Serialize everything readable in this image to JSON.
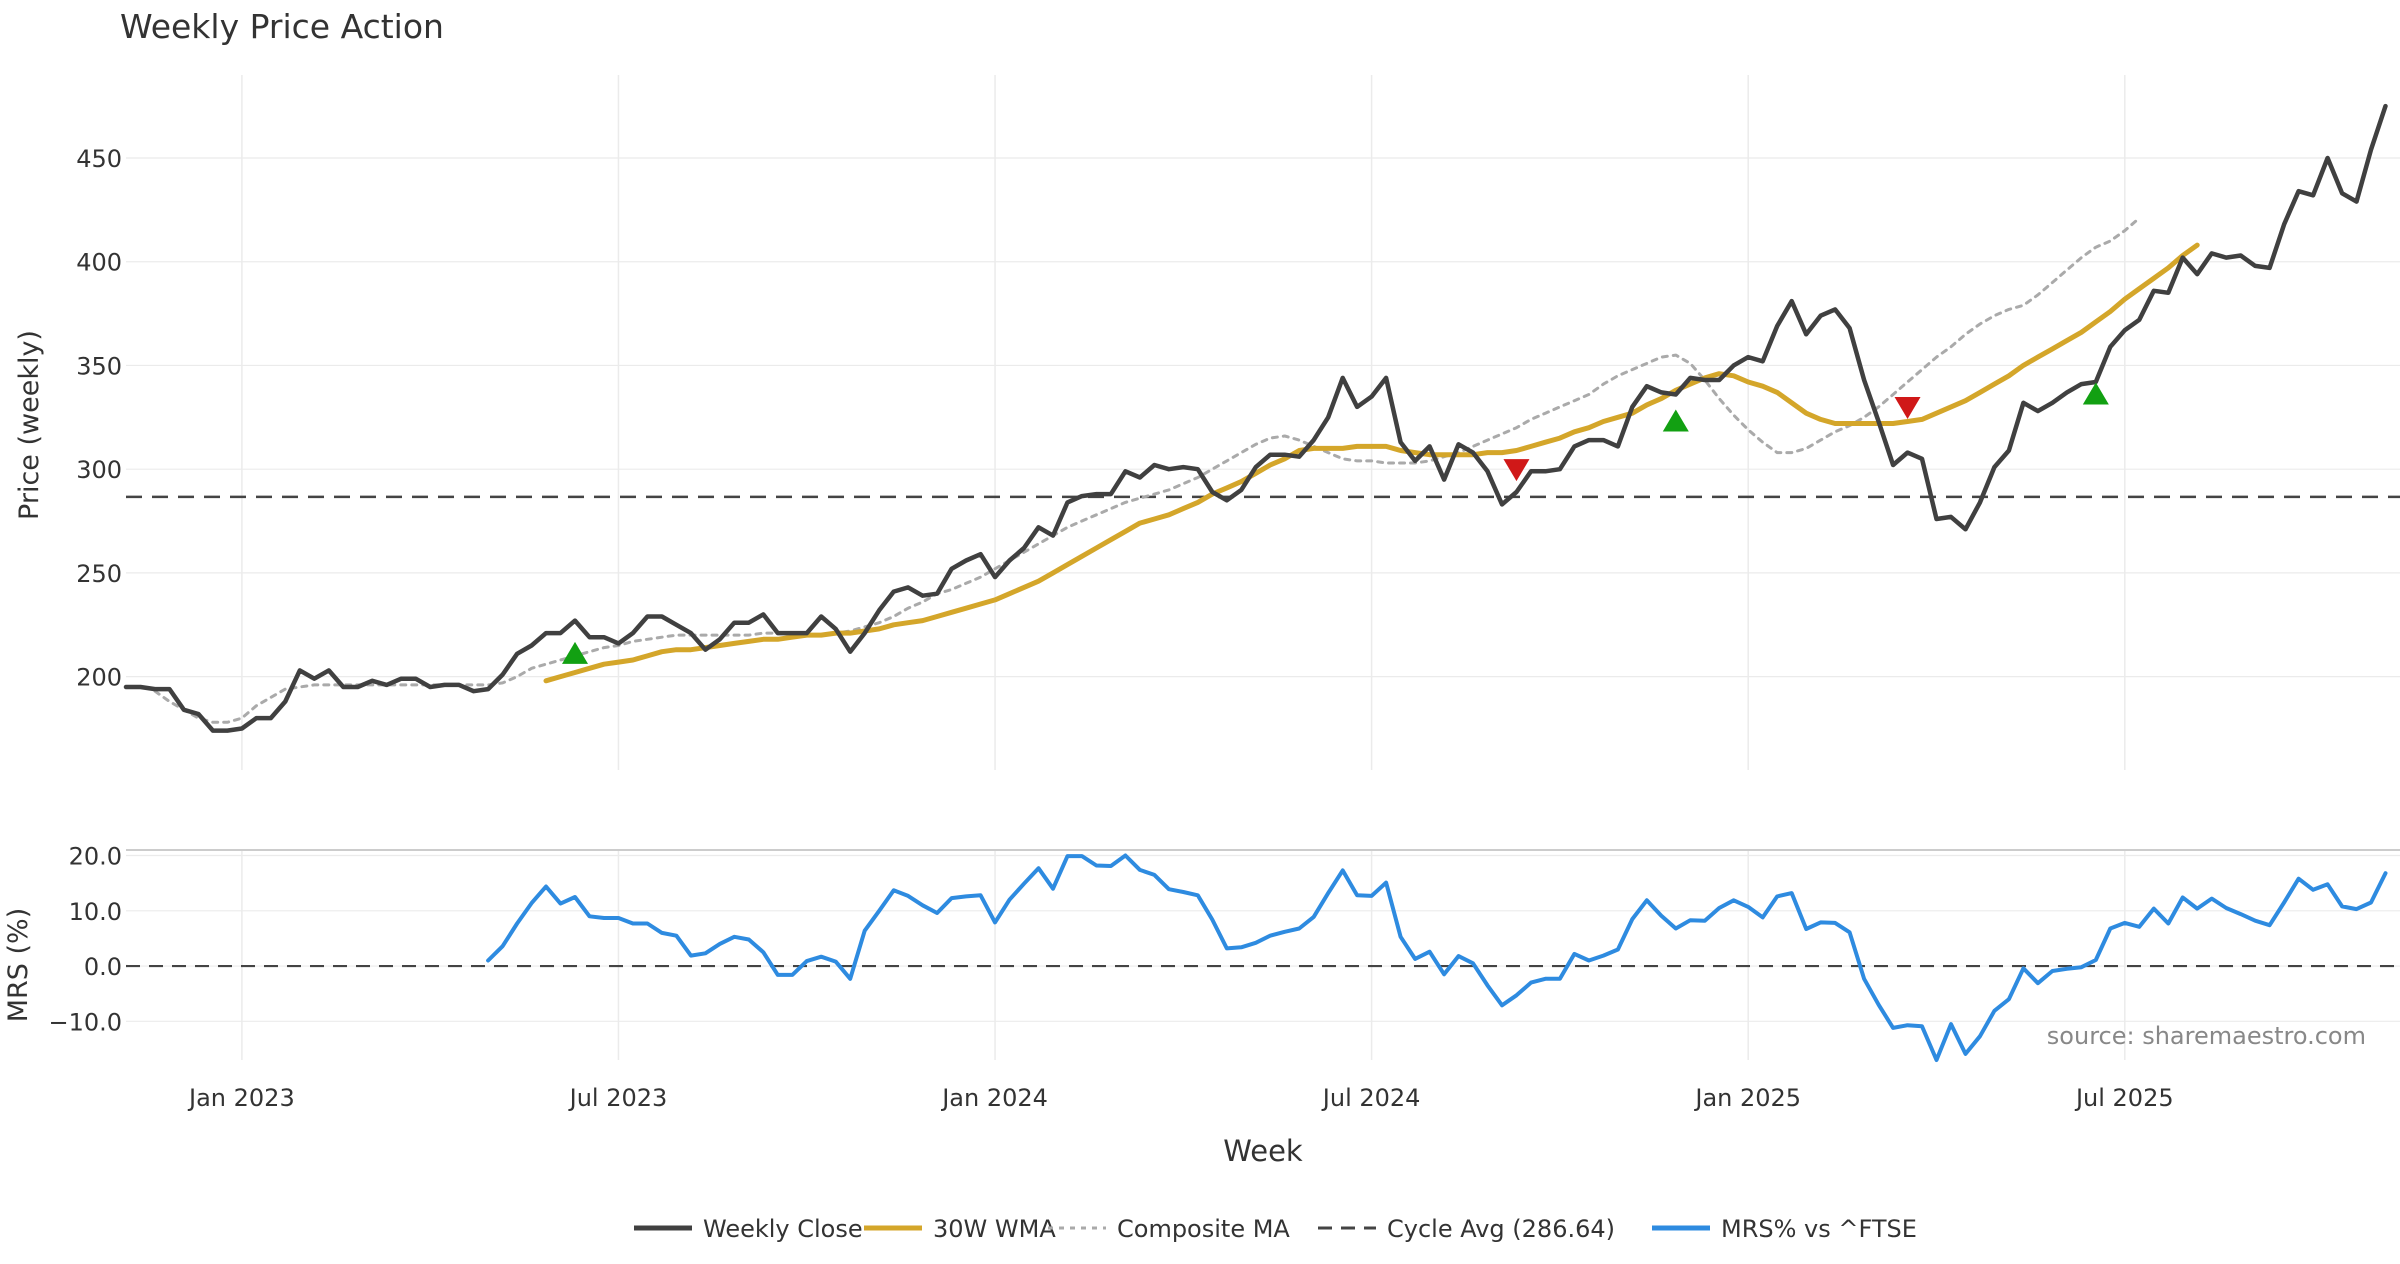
{
  "chart_data": [
    {
      "type": "line",
      "title": "Weekly Price Action",
      "ylabel": "Price (weekly)",
      "xlabel": "",
      "ylim": [
        155,
        490
      ],
      "yticks": [
        200,
        250,
        300,
        350,
        400,
        450
      ],
      "x_start": "2022-11-04",
      "x_end": "2025-11-07",
      "cycle_avg": 286.64,
      "series": [
        {
          "name": "Weekly Close",
          "color": "#404040",
          "start_week": 0,
          "values": [
            195,
            195,
            194,
            194,
            184,
            182,
            174,
            174,
            175,
            180,
            180,
            188,
            203,
            199,
            203,
            195,
            195,
            198,
            196,
            199,
            199,
            195,
            196,
            196,
            193,
            194,
            201,
            211,
            215,
            221,
            221,
            227,
            219,
            219,
            216,
            221,
            229,
            229,
            225,
            221,
            213,
            218,
            226,
            226,
            230,
            221,
            221,
            221,
            229,
            223,
            212,
            221,
            232,
            241,
            243,
            239,
            240,
            252,
            256,
            259,
            248,
            256,
            262,
            272,
            268,
            284,
            287,
            288,
            288,
            299,
            296,
            302,
            300,
            301,
            300,
            289,
            285,
            290,
            301,
            307,
            307,
            306,
            314,
            325,
            344,
            330,
            335,
            344,
            313,
            304,
            311,
            295,
            312,
            308,
            299,
            283,
            289,
            299,
            299,
            300,
            311,
            314,
            314,
            311,
            330,
            340,
            337,
            336,
            344,
            343,
            343,
            350,
            354,
            352,
            369,
            381,
            365,
            374,
            377,
            368,
            343,
            323,
            302,
            308,
            305,
            276,
            277,
            271,
            284,
            301,
            309,
            332,
            328,
            332,
            337,
            341,
            342,
            359,
            367,
            372,
            386,
            385,
            402,
            394,
            404,
            402,
            403,
            398,
            397,
            418,
            434,
            432,
            450,
            433,
            429,
            454,
            475
          ]
        },
        {
          "name": "30W WMA",
          "color": "#d4a62a",
          "start_week": 29,
          "values": [
            198,
            200,
            202,
            204,
            206,
            207,
            208,
            210,
            212,
            213,
            213,
            214,
            215,
            216,
            217,
            218,
            218,
            219,
            220,
            220,
            221,
            221,
            222,
            223,
            225,
            226,
            227,
            229,
            231,
            233,
            235,
            237,
            240,
            243,
            246,
            250,
            254,
            258,
            262,
            266,
            270,
            274,
            276,
            278,
            281,
            284,
            288,
            291,
            294,
            298,
            302,
            305,
            309,
            310,
            310,
            310,
            311,
            311,
            311,
            309,
            308,
            307,
            307,
            307,
            307,
            308,
            308,
            309,
            311,
            313,
            315,
            318,
            320,
            323,
            325,
            327,
            331,
            334,
            338,
            341,
            344,
            346,
            345,
            342,
            340,
            337,
            332,
            327,
            324,
            322,
            322,
            322,
            322,
            322,
            323,
            324,
            327,
            330,
            333,
            337,
            341,
            345,
            350,
            354,
            358,
            362,
            366,
            371,
            376,
            382,
            387,
            392,
            397,
            403,
            408
          ]
        },
        {
          "name": "Composite MA",
          "color": "#aaaaaa",
          "start_week": 2,
          "values": [
            193,
            188,
            184,
            180,
            178,
            178,
            180,
            186,
            190,
            194,
            195,
            196,
            196,
            196,
            196,
            196,
            196,
            196,
            196,
            196,
            196,
            196,
            196,
            196,
            197,
            200,
            204,
            206,
            208,
            210,
            212,
            214,
            215,
            217,
            218,
            219,
            220,
            220,
            220,
            220,
            220,
            220,
            221,
            221,
            221,
            220,
            220,
            221,
            222,
            224,
            226,
            229,
            233,
            236,
            240,
            242,
            245,
            248,
            252,
            256,
            260,
            264,
            268,
            272,
            275,
            278,
            281,
            284,
            286,
            288,
            290,
            293,
            296,
            300,
            304,
            308,
            312,
            315,
            316,
            314,
            311,
            308,
            305,
            304,
            304,
            303,
            303,
            303,
            304,
            306,
            308,
            311,
            314,
            317,
            320,
            324,
            327,
            330,
            333,
            336,
            341,
            345,
            348,
            351,
            354,
            355,
            351,
            343,
            334,
            326,
            319,
            313,
            308,
            308,
            310,
            314,
            318,
            321,
            325,
            330,
            336,
            342,
            348,
            354,
            359,
            365,
            370,
            374,
            377,
            379,
            384,
            390,
            396,
            402,
            407,
            410,
            415,
            421
          ]
        },
        {
          "name": "Cycle Avg (286.64)",
          "color": "#444444",
          "dashed": true,
          "constant": 286.64
        }
      ],
      "signals": [
        {
          "type": "buy",
          "week": 31,
          "value": 211
        },
        {
          "type": "sell",
          "week": 96,
          "value": 300
        },
        {
          "type": "buy",
          "week": 107,
          "value": 323
        },
        {
          "type": "sell",
          "week": 123,
          "value": 330
        },
        {
          "type": "buy",
          "week": 136,
          "value": 336
        }
      ]
    },
    {
      "type": "line",
      "title": "",
      "ylabel": "MRS (%)",
      "xlabel": "Week",
      "ylim": [
        -17,
        21
      ],
      "yticks": [
        20,
        10,
        0,
        -10
      ],
      "ytick_labels": [
        "20.0",
        "10.0",
        "0.0",
        "−10.0"
      ],
      "xticks": [
        "Jan 2023",
        "Jul 2023",
        "Jan 2024",
        "Jul 2024",
        "Jan 2025",
        "Jul 2025"
      ],
      "xtick_weeks": [
        8,
        34,
        60,
        86,
        112,
        138
      ],
      "zero_line": 0,
      "series": [
        {
          "name": "MRS% vs ^FTSE",
          "color": "#2e8be0",
          "start_week": 25,
          "values": [
            1,
            3.6,
            7.7,
            11.4,
            14.4,
            11.3,
            12.5,
            9,
            8.7,
            8.7,
            7.7,
            7.7,
            6,
            5.5,
            1.9,
            2.3,
            4,
            5.3,
            4.8,
            2.5,
            -1.6,
            -1.6,
            0.9,
            1.7,
            0.8,
            -2.3,
            6.4,
            10,
            13.7,
            12.7,
            11,
            9.6,
            12.3,
            12.6,
            12.8,
            7.9,
            12,
            14.9,
            17.7,
            14,
            19.9,
            19.9,
            18.2,
            18.1,
            20,
            17.4,
            16.5,
            13.9,
            13.4,
            12.8,
            8.4,
            3.2,
            3.4,
            4.2,
            5.5,
            6.2,
            6.8,
            8.9,
            13.2,
            17.3,
            12.8,
            12.7,
            15.1,
            5.3,
            1.3,
            2.6,
            -1.5,
            1.8,
            0.5,
            -3.5,
            -7.1,
            -5.3,
            -3,
            -2.3,
            -2.3,
            2.2,
            1,
            1.9,
            3,
            8.5,
            11.9,
            9.1,
            6.8,
            8.3,
            8.2,
            10.5,
            11.9,
            10.7,
            8.8,
            12.6,
            13.2,
            6.7,
            7.9,
            7.8,
            6.1,
            -2.3,
            -7,
            -11.2,
            -10.7,
            -10.9,
            -17,
            -10.5,
            -15.9,
            -12.7,
            -8.1,
            -6,
            -0.4,
            -3.1,
            -0.9,
            -0.5,
            -0.2,
            1.1,
            6.8,
            7.8,
            7.1,
            10.4,
            7.7,
            12.4,
            10.4,
            12.2,
            10.5,
            9.4,
            8.2,
            7.4,
            11.5,
            15.8,
            13.8,
            14.8,
            10.8,
            10.3,
            11.5,
            16.8
          ]
        }
      ],
      "annotation": "source: sharemaestro.com"
    }
  ],
  "legend": [
    {
      "label": "Weekly Close",
      "style": "solid",
      "color": "#404040"
    },
    {
      "label": "30W WMA",
      "style": "solid",
      "color": "#d4a62a"
    },
    {
      "label": "Composite MA",
      "style": "dotted",
      "color": "#aaaaaa"
    },
    {
      "label": "Cycle Avg (286.64)",
      "style": "dashed",
      "color": "#444444"
    },
    {
      "label": "MRS% vs ^FTSE",
      "style": "solid",
      "color": "#2e8be0"
    }
  ],
  "colors": {
    "buy_marker": "#12a012",
    "sell_marker": "#d01818",
    "grid": "#ebebeb",
    "text": "#333333"
  }
}
